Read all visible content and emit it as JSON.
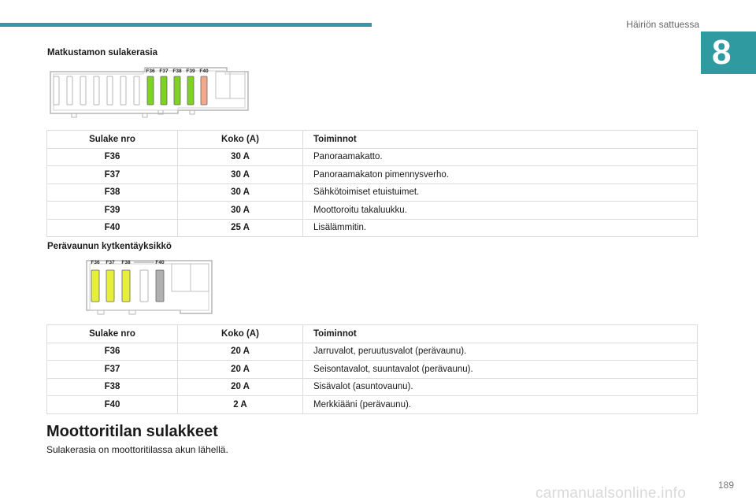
{
  "header": {
    "section_title": "Häiriön sattuessa",
    "chapter_number": "8",
    "accent_color": "#2f9aa0"
  },
  "block1": {
    "heading": "Matkustamon sulakerasia",
    "diagram": {
      "labels": [
        "F36",
        "F37",
        "F38",
        "F39",
        "F40"
      ],
      "fuse_colors": [
        "#7ed321",
        "#7ed321",
        "#7ed321",
        "#7ed321",
        "#f2a98a"
      ]
    },
    "table": {
      "headers": [
        "Sulake nro",
        "Koko (A)",
        "Toiminnot"
      ],
      "rows": [
        [
          "F36",
          "30 A",
          "Panoraamakatto."
        ],
        [
          "F37",
          "30 A",
          "Panoraamakaton pimennysverho."
        ],
        [
          "F38",
          "30 A",
          "Sähkötoimiset etuistuimet."
        ],
        [
          "F39",
          "30 A",
          "Moottoroitu takaluukku."
        ],
        [
          "F40",
          "25 A",
          "Lisälämmitin."
        ]
      ]
    }
  },
  "block2": {
    "heading": "Perävaunun kytkentäyksikkö",
    "diagram": {
      "labels": [
        "F36",
        "F37",
        "F38",
        "F40"
      ],
      "fuse_colors": [
        "#e6ef3a",
        "#e6ef3a",
        "#e6ef3a",
        "#b0b0b0"
      ]
    },
    "table": {
      "headers": [
        "Sulake nro",
        "Koko (A)",
        "Toiminnot"
      ],
      "rows": [
        [
          "F36",
          "20 A",
          "Jarruvalot, peruutusvalot (perävaunu)."
        ],
        [
          "F37",
          "20 A",
          "Seisontavalot, suuntavalot (perävaunu)."
        ],
        [
          "F38",
          "20 A",
          "Sisävalot (asuntovaunu)."
        ],
        [
          "F40",
          "2 A",
          "Merkkiääni (perävaunu)."
        ]
      ]
    }
  },
  "section": {
    "heading": "Moottoritilan sulakkeet",
    "text": "Sulakerasia on moottoritilassa akun lähellä."
  },
  "footer": {
    "page_number": "189",
    "watermark": "carmanualsonline.info"
  }
}
